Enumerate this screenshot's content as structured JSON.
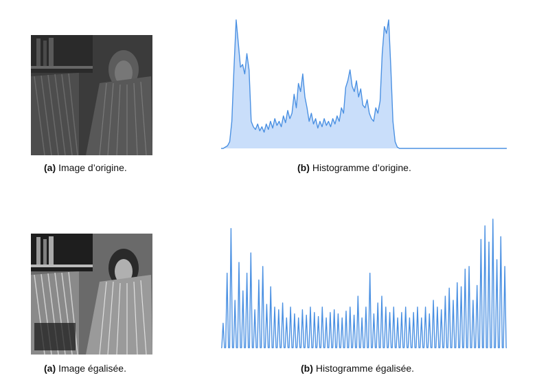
{
  "figure1": {
    "caption_a": {
      "label": "(a)",
      "text": "Image d’origine."
    },
    "caption_b": {
      "label": "(b)",
      "text": "Histogramme d’origine."
    }
  },
  "figure2": {
    "caption_a": {
      "label": "(a)",
      "text": "Image égalisée."
    },
    "caption_b": {
      "label": "(b)",
      "text": "Histogramme égalisée."
    }
  },
  "colors": {
    "line": "#4a90e2",
    "fill": "#c9defa"
  },
  "chart_data": [
    {
      "type": "area",
      "x_range": [
        0,
        255
      ],
      "ylim": [
        0,
        1
      ],
      "grid": false,
      "values": [
        0,
        0,
        0.01,
        0.02,
        0.05,
        0.2,
        0.6,
        0.95,
        0.78,
        0.6,
        0.62,
        0.55,
        0.7,
        0.58,
        0.2,
        0.16,
        0.14,
        0.18,
        0.13,
        0.16,
        0.12,
        0.18,
        0.14,
        0.2,
        0.15,
        0.22,
        0.17,
        0.2,
        0.16,
        0.24,
        0.19,
        0.28,
        0.22,
        0.26,
        0.4,
        0.3,
        0.48,
        0.42,
        0.55,
        0.38,
        0.3,
        0.2,
        0.26,
        0.18,
        0.22,
        0.15,
        0.2,
        0.16,
        0.22,
        0.17,
        0.2,
        0.16,
        0.22,
        0.18,
        0.24,
        0.2,
        0.3,
        0.26,
        0.45,
        0.5,
        0.58,
        0.46,
        0.42,
        0.5,
        0.38,
        0.44,
        0.32,
        0.3,
        0.36,
        0.26,
        0.22,
        0.2,
        0.3,
        0.26,
        0.35,
        0.7,
        0.9,
        0.85,
        0.95,
        0.6,
        0.2,
        0.05,
        0.01,
        0,
        0,
        0,
        0,
        0,
        0,
        0,
        0,
        0,
        0,
        0,
        0,
        0,
        0,
        0,
        0,
        0,
        0,
        0,
        0,
        0,
        0,
        0,
        0,
        0,
        0,
        0,
        0,
        0,
        0,
        0,
        0,
        0,
        0,
        0,
        0,
        0,
        0,
        0,
        0,
        0,
        0,
        0,
        0,
        0,
        0,
        0,
        0,
        0,
        0,
        0
      ]
    },
    {
      "type": "line",
      "x_range": [
        0,
        255
      ],
      "ylim": [
        0,
        1
      ],
      "grid": false,
      "values": [
        0.18,
        0.55,
        0.88,
        0.35,
        0.63,
        0.42,
        0.55,
        0.7,
        0.28,
        0.5,
        0.6,
        0.32,
        0.45,
        0.3,
        0.28,
        0.33,
        0.22,
        0.3,
        0.25,
        0.22,
        0.28,
        0.24,
        0.3,
        0.26,
        0.23,
        0.3,
        0.22,
        0.26,
        0.28,
        0.25,
        0.22,
        0.27,
        0.3,
        0.24,
        0.38,
        0.22,
        0.3,
        0.55,
        0.25,
        0.33,
        0.38,
        0.3,
        0.26,
        0.3,
        0.22,
        0.26,
        0.3,
        0.22,
        0.26,
        0.3,
        0.22,
        0.3,
        0.25,
        0.35,
        0.3,
        0.28,
        0.38,
        0.44,
        0.35,
        0.48,
        0.45,
        0.58,
        0.6,
        0.35,
        0.46,
        0.8,
        0.9,
        0.78,
        0.95,
        0.65,
        0.82,
        0.6
      ]
    }
  ]
}
